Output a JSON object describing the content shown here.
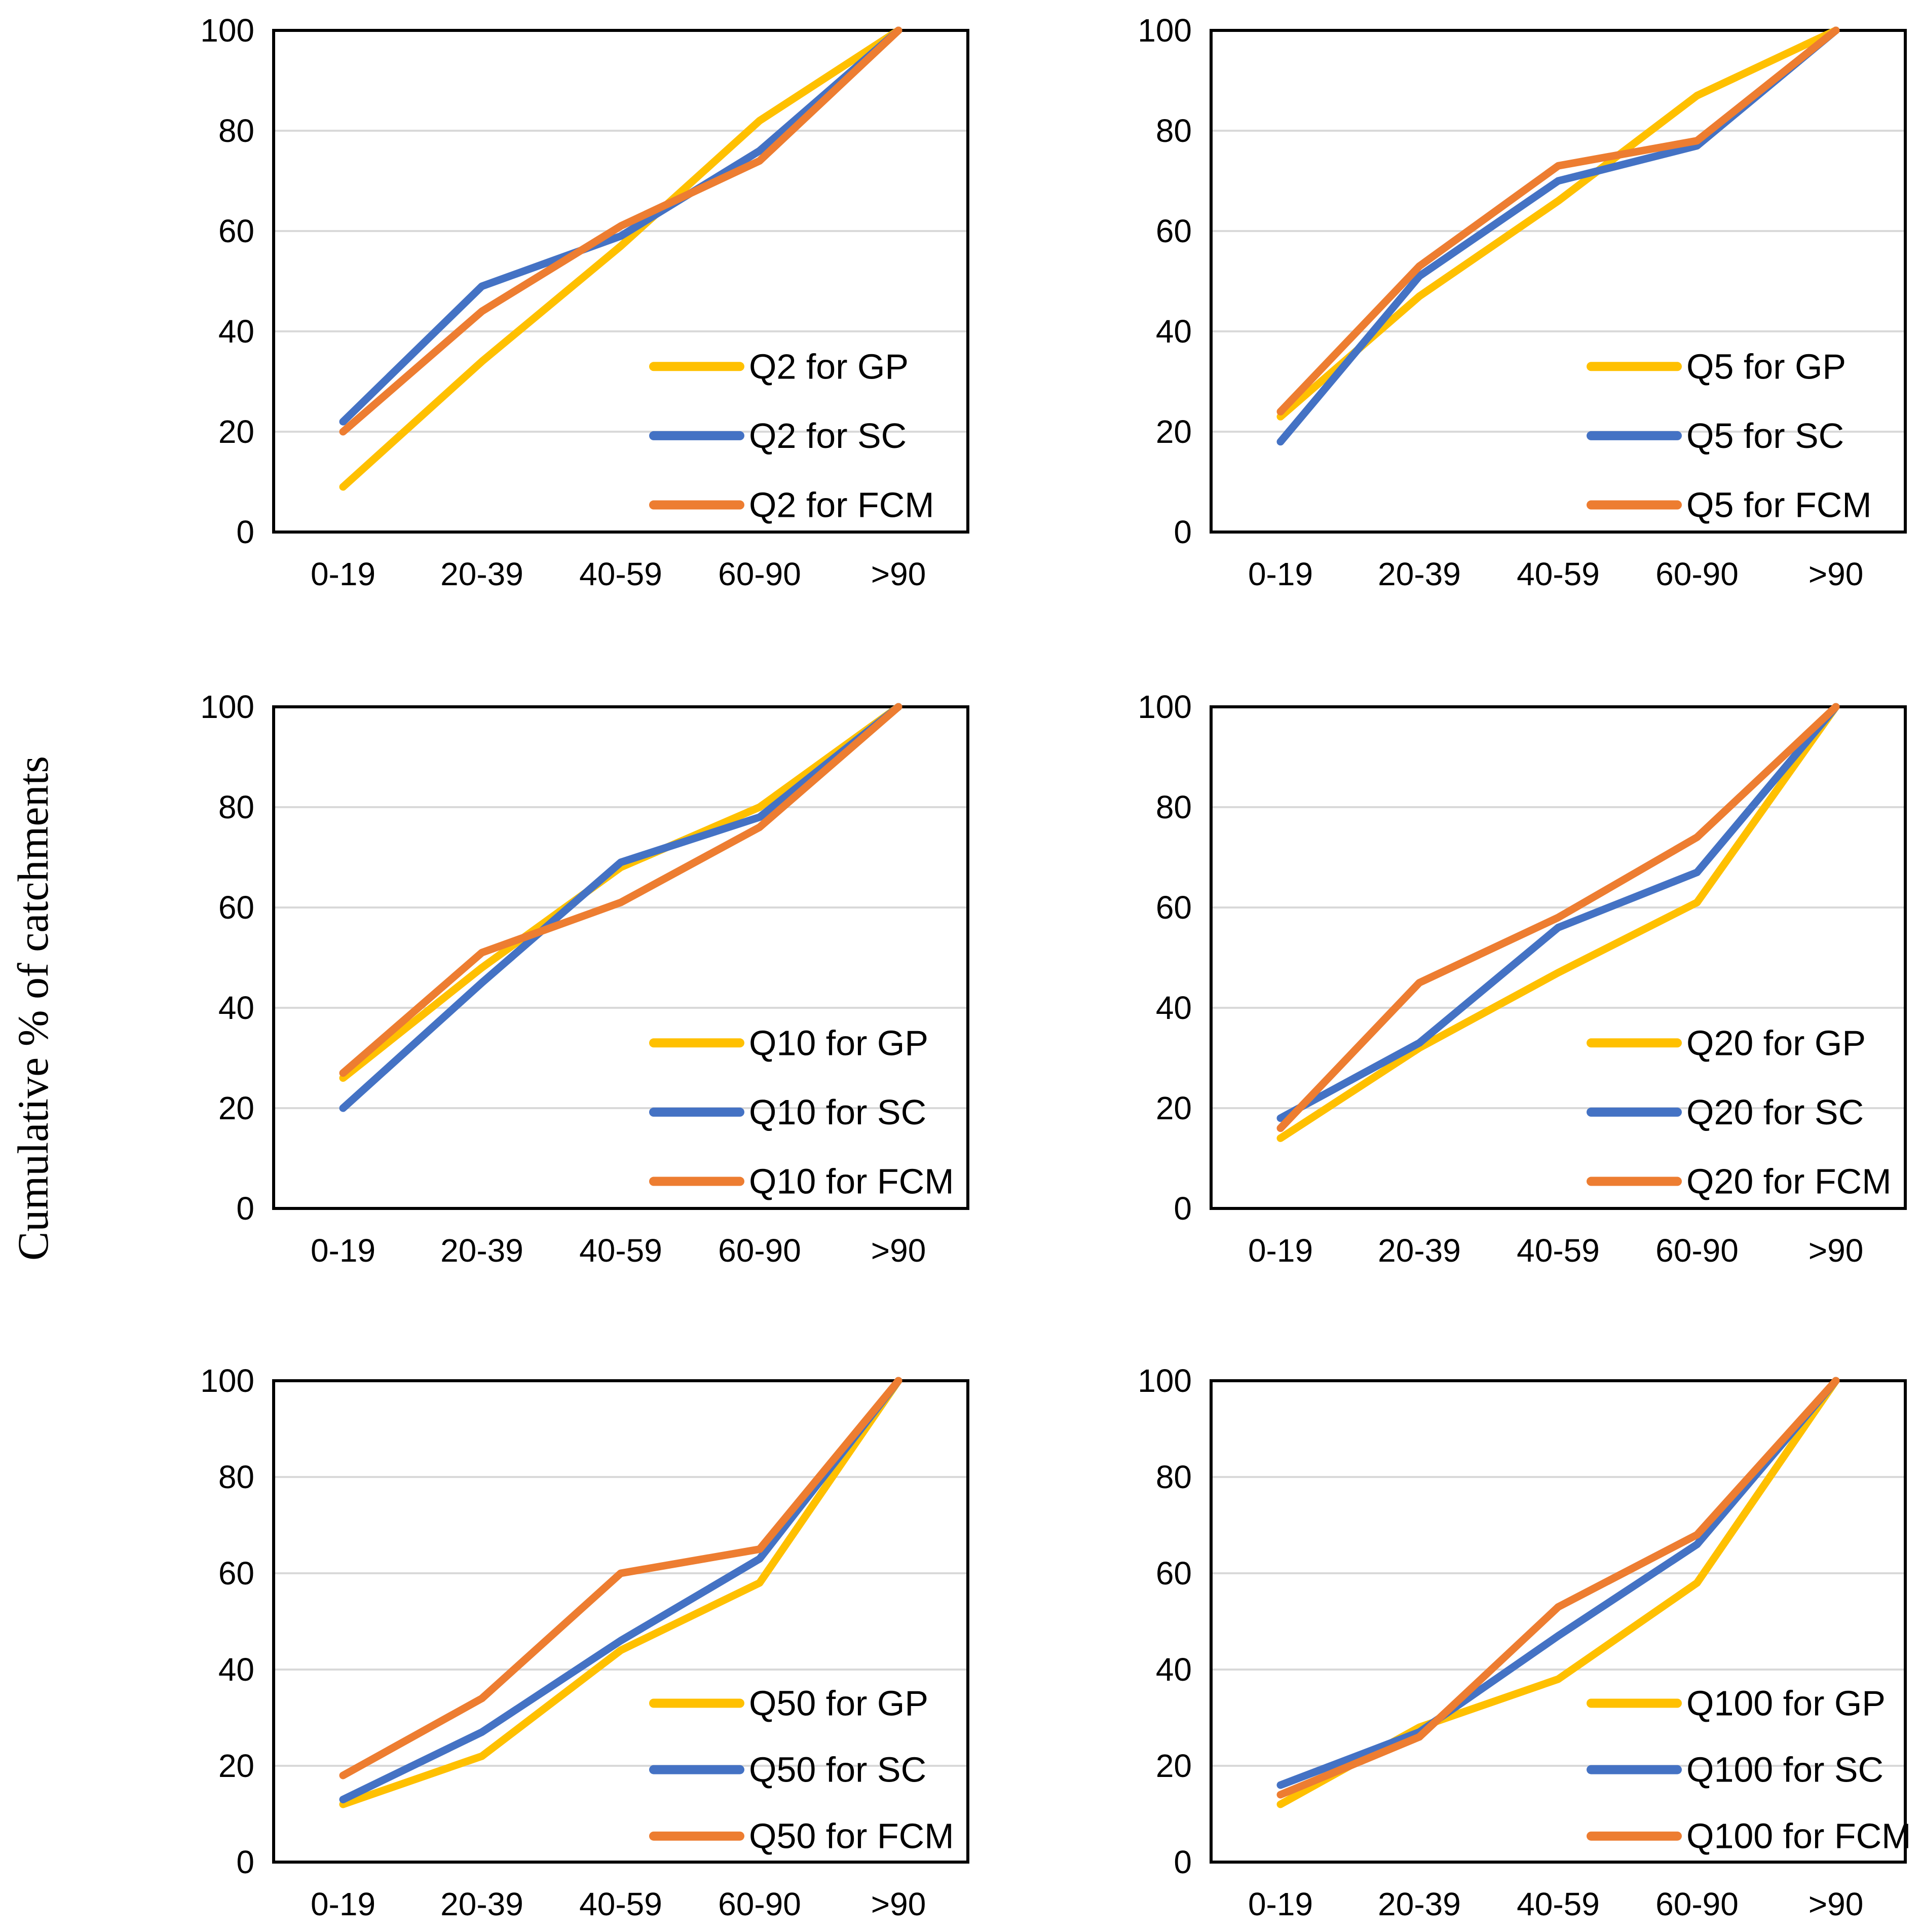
{
  "figure": {
    "y_axis_title": "Cumulative % of catchments"
  },
  "palette": {
    "gp": "#FFC000",
    "sc": "#4472C4",
    "fcm": "#ED7D31",
    "gridline": "#D9D9D9",
    "border": "#000000",
    "text": "#000000"
  },
  "chart_data": [
    {
      "type": "line",
      "id": "q2",
      "position": "top-left",
      "categories": [
        "0-19",
        "20-39",
        "40-59",
        "60-90",
        ">90"
      ],
      "y_ticks": [
        0,
        20,
        40,
        60,
        80,
        100
      ],
      "ylim": [
        0,
        100
      ],
      "grid": true,
      "legend_position": "inside-lower-right",
      "series": [
        {
          "name": "Q2 for GP",
          "color_key": "gp",
          "values": [
            9,
            34,
            57,
            82,
            100
          ]
        },
        {
          "name": "Q2 for SC",
          "color_key": "sc",
          "values": [
            22,
            49,
            59,
            76,
            100
          ]
        },
        {
          "name": "Q2 for FCM",
          "color_key": "fcm",
          "values": [
            20,
            44,
            61,
            74,
            100
          ]
        }
      ]
    },
    {
      "type": "line",
      "id": "q5",
      "position": "top-right",
      "categories": [
        "0-19",
        "20-39",
        "40-59",
        "60-90",
        ">90"
      ],
      "y_ticks": [
        0,
        20,
        40,
        60,
        80,
        100
      ],
      "ylim": [
        0,
        100
      ],
      "grid": true,
      "legend_position": "inside-lower-right",
      "series": [
        {
          "name": "Q5 for GP",
          "color_key": "gp",
          "values": [
            23,
            47,
            66,
            87,
            100
          ]
        },
        {
          "name": "Q5 for SC",
          "color_key": "sc",
          "values": [
            18,
            51,
            70,
            77,
            100
          ]
        },
        {
          "name": "Q5 for FCM",
          "color_key": "fcm",
          "values": [
            24,
            53,
            73,
            78,
            100
          ]
        }
      ]
    },
    {
      "type": "line",
      "id": "q10",
      "position": "middle-left",
      "categories": [
        "0-19",
        "20-39",
        "40-59",
        "60-90",
        ">90"
      ],
      "y_ticks": [
        0,
        20,
        40,
        60,
        80,
        100
      ],
      "ylim": [
        0,
        100
      ],
      "grid": true,
      "legend_position": "inside-lower-right",
      "series": [
        {
          "name": "Q10 for GP",
          "color_key": "gp",
          "values": [
            26,
            48,
            68,
            80,
            100
          ]
        },
        {
          "name": "Q10 for SC",
          "color_key": "sc",
          "values": [
            20,
            45,
            69,
            78,
            100
          ]
        },
        {
          "name": "Q10 for FCM",
          "color_key": "fcm",
          "values": [
            27,
            51,
            61,
            76,
            100
          ]
        }
      ]
    },
    {
      "type": "line",
      "id": "q20",
      "position": "middle-right",
      "categories": [
        "0-19",
        "20-39",
        "40-59",
        "60-90",
        ">90"
      ],
      "y_ticks": [
        0,
        20,
        40,
        60,
        80,
        100
      ],
      "ylim": [
        0,
        100
      ],
      "grid": true,
      "legend_position": "inside-lower-right",
      "series": [
        {
          "name": "Q20 for GP",
          "color_key": "gp",
          "values": [
            14,
            32,
            47,
            61,
            100
          ]
        },
        {
          "name": "Q20 for SC",
          "color_key": "sc",
          "values": [
            18,
            33,
            56,
            67,
            100
          ]
        },
        {
          "name": "Q20 for FCM",
          "color_key": "fcm",
          "values": [
            16,
            45,
            58,
            74,
            100
          ]
        }
      ]
    },
    {
      "type": "line",
      "id": "q50",
      "position": "bottom-left",
      "categories": [
        "0-19",
        "20-39",
        "40-59",
        "60-90",
        ">90"
      ],
      "y_ticks": [
        0,
        20,
        40,
        60,
        80,
        100
      ],
      "ylim": [
        0,
        100
      ],
      "grid": true,
      "legend_position": "inside-lower-right",
      "series": [
        {
          "name": "Q50 for GP",
          "color_key": "gp",
          "values": [
            12,
            22,
            44,
            58,
            100
          ]
        },
        {
          "name": "Q50 for SC",
          "color_key": "sc",
          "values": [
            13,
            27,
            46,
            63,
            100
          ]
        },
        {
          "name": "Q50 for FCM",
          "color_key": "fcm",
          "values": [
            18,
            34,
            60,
            65,
            100
          ]
        }
      ]
    },
    {
      "type": "line",
      "id": "q100",
      "position": "bottom-right",
      "categories": [
        "0-19",
        "20-39",
        "40-59",
        "60-90",
        ">90"
      ],
      "y_ticks": [
        0,
        20,
        40,
        60,
        80,
        100
      ],
      "ylim": [
        0,
        100
      ],
      "grid": true,
      "legend_position": "inside-lower-right",
      "series": [
        {
          "name": "Q100 for GP",
          "color_key": "gp",
          "values": [
            12,
            28,
            38,
            58,
            100
          ]
        },
        {
          "name": "Q100 for SC",
          "color_key": "sc",
          "values": [
            16,
            27,
            47,
            66,
            100
          ]
        },
        {
          "name": "Q100 for FCM",
          "color_key": "fcm",
          "values": [
            14,
            26,
            53,
            68,
            100
          ]
        }
      ]
    }
  ]
}
